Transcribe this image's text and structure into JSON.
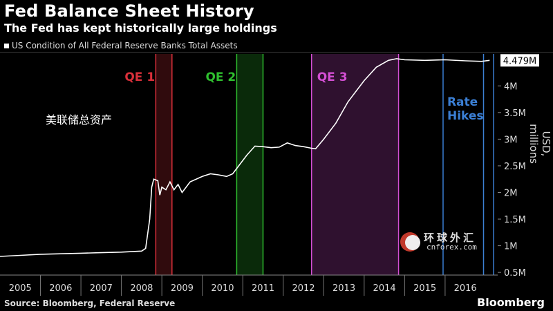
{
  "header": {
    "title": "Fed Balance Sheet History",
    "subtitle": "The Fed has kept historically large holdings"
  },
  "legend": {
    "series_label": "US Condition of All Federal Reserve Banks Total Assets"
  },
  "annotation_cn": "美联储总资产",
  "watermark": {
    "text_cn": "环球外汇",
    "text_en": "cnforex.com"
  },
  "footer": {
    "source": "Source: Bloomberg, Federal Reserve",
    "brand": "Bloomberg"
  },
  "colors": {
    "background": "#000000",
    "line": "#ffffff",
    "qe1": "#d9303a",
    "qe2": "#2fbf2f",
    "qe3": "#d44fd4",
    "rate_hikes": "#3b7fd4",
    "last_value_box": "#ffffff"
  },
  "chart_data": {
    "type": "line",
    "title": "Fed Balance Sheet History",
    "ylabel": "USD, millions",
    "xlabel": "",
    "ylim": [
      0.45,
      4.6
    ],
    "xlim": [
      2005.0,
      2017.3
    ],
    "y_ticks": [
      0.5,
      1,
      1.5,
      2,
      2.5,
      3,
      3.5,
      4
    ],
    "y_tick_labels": [
      "0.5M",
      "1M",
      "1.5M",
      "2M",
      "2.5M",
      "3M",
      "3.5M",
      "4M"
    ],
    "x_ticks": [
      2005,
      2006,
      2007,
      2008,
      2009,
      2010,
      2011,
      2012,
      2013,
      2014,
      2015,
      2016
    ],
    "x_tick_labels": [
      "2005",
      "2006",
      "2007",
      "2008",
      "2009",
      "2010",
      "2011",
      "2012",
      "2013",
      "2014",
      "2015",
      "2016"
    ],
    "grid": false,
    "last_value_label": "4.479M",
    "series": [
      {
        "name": "US Condition of All Federal Reserve Banks Total Assets",
        "x": [
          2005.0,
          2005.5,
          2006.0,
          2006.5,
          2007.0,
          2007.5,
          2008.0,
          2008.5,
          2008.6,
          2008.7,
          2008.75,
          2008.8,
          2008.9,
          2008.95,
          2009.0,
          2009.1,
          2009.2,
          2009.3,
          2009.4,
          2009.5,
          2009.7,
          2010.0,
          2010.2,
          2010.4,
          2010.6,
          2010.75,
          2010.9,
          2011.1,
          2011.3,
          2011.5,
          2011.7,
          2011.9,
          2012.1,
          2012.3,
          2012.5,
          2012.7,
          2012.8,
          2013.0,
          2013.3,
          2013.6,
          2014.0,
          2014.3,
          2014.6,
          2014.8,
          2015.0,
          2015.5,
          2016.0,
          2016.5,
          2016.9,
          2017.1
        ],
        "y": [
          0.8,
          0.82,
          0.84,
          0.85,
          0.86,
          0.87,
          0.88,
          0.9,
          0.95,
          1.5,
          2.1,
          2.25,
          2.22,
          1.95,
          2.1,
          2.05,
          2.2,
          2.05,
          2.15,
          2.0,
          2.2,
          2.3,
          2.35,
          2.33,
          2.3,
          2.35,
          2.5,
          2.7,
          2.87,
          2.86,
          2.84,
          2.85,
          2.93,
          2.88,
          2.86,
          2.83,
          2.82,
          3.0,
          3.3,
          3.7,
          4.1,
          4.35,
          4.48,
          4.51,
          4.49,
          4.48,
          4.49,
          4.47,
          4.46,
          4.479
        ]
      }
    ],
    "bands": [
      {
        "label": "QE 1",
        "start": 2008.85,
        "end": 2009.25,
        "color_key": "qe1"
      },
      {
        "label": "QE 2",
        "start": 2010.85,
        "end": 2011.5,
        "color_key": "qe2"
      },
      {
        "label": "QE 3",
        "start": 2012.7,
        "end": 2014.85,
        "color_key": "qe3"
      }
    ],
    "vlines": [
      {
        "label": "Rate Hikes",
        "x": [
          2015.95,
          2016.95,
          2017.2
        ],
        "color_key": "rate_hikes"
      }
    ]
  }
}
